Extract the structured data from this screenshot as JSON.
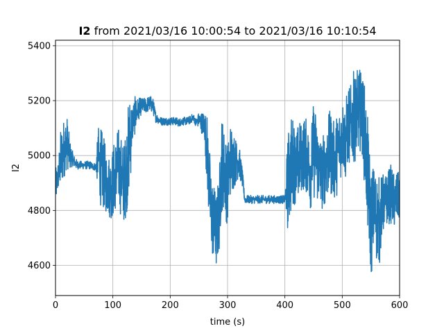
{
  "chart_data": {
    "type": "line",
    "title_bold": "I2",
    "title_rest": " from 2021/03/16 10:00:54 to 2021/03/16 10:10:54",
    "xlabel": "time (s)",
    "ylabel": "I2",
    "xlim": [
      0,
      600
    ],
    "ylim": [
      4490,
      5420
    ],
    "x_ticks": [
      0,
      100,
      200,
      300,
      400,
      500,
      600
    ],
    "y_ticks": [
      4600,
      4800,
      5000,
      5200,
      5400
    ],
    "grid": true,
    "line_color": "#1f77b4",
    "series": [
      {
        "x": [
          0,
          5,
          10,
          15,
          20,
          25,
          30,
          35,
          40,
          45,
          50,
          55,
          60,
          65,
          70,
          75,
          80,
          85,
          90,
          95,
          100,
          105,
          110,
          115,
          120,
          125,
          130,
          135,
          140,
          145,
          150,
          155,
          160,
          165,
          170,
          175,
          180,
          185,
          190,
          195,
          200,
          205,
          210,
          215,
          220,
          225,
          230,
          235,
          240,
          245,
          250,
          255,
          260,
          265,
          270,
          275,
          280,
          285,
          290,
          295,
          300,
          305,
          310,
          315,
          320,
          325,
          330,
          335,
          340,
          345,
          350,
          355,
          360,
          365,
          370,
          375,
          380,
          385,
          390,
          395,
          400,
          405,
          410,
          415,
          420,
          425,
          430,
          435,
          440,
          445,
          450,
          455,
          460,
          465,
          470,
          475,
          480,
          485,
          490,
          495,
          500,
          505,
          510,
          515,
          520,
          525,
          530,
          535,
          540,
          545,
          550,
          555,
          560,
          565,
          570,
          575,
          580,
          585,
          590,
          595,
          600
        ],
        "center": [
          4880,
          4930,
          4990,
          5030,
          5050,
          5000,
          4990,
          4970,
          4965,
          4965,
          4965,
          4965,
          4965,
          4960,
          4960,
          4990,
          4950,
          4930,
          4900,
          4890,
          4900,
          4940,
          4960,
          4920,
          4900,
          4980,
          5060,
          5130,
          5150,
          5170,
          5180,
          5180,
          5185,
          5190,
          5180,
          5140,
          5130,
          5125,
          5125,
          5125,
          5125,
          5125,
          5125,
          5120,
          5125,
          5125,
          5125,
          5130,
          5140,
          5120,
          5130,
          5120,
          5110,
          5000,
          4820,
          4760,
          4720,
          4780,
          4980,
          4940,
          4890,
          4990,
          4990,
          4980,
          4980,
          4930,
          4840,
          4840,
          4840,
          4840,
          4840,
          4840,
          4840,
          4840,
          4840,
          4840,
          4840,
          4840,
          4840,
          4840,
          4840,
          4900,
          4960,
          4990,
          4950,
          4980,
          5000,
          5010,
          4980,
          4950,
          5020,
          5000,
          4950,
          4930,
          4970,
          4990,
          5010,
          4980,
          5000,
          5040,
          5080,
          5050,
          5100,
          5120,
          5140,
          5150,
          5170,
          5150,
          5050,
          4900,
          4750,
          4800,
          4780,
          4760,
          4820,
          4830,
          4850,
          4860,
          4830,
          4840,
          4850
        ],
        "spread": [
          70,
          60,
          130,
          110,
          100,
          60,
          25,
          20,
          15,
          15,
          15,
          15,
          15,
          15,
          15,
          120,
          150,
          130,
          120,
          120,
          140,
          140,
          150,
          150,
          150,
          180,
          180,
          70,
          70,
          40,
          30,
          30,
          30,
          30,
          30,
          20,
          15,
          15,
          15,
          15,
          15,
          15,
          15,
          15,
          15,
          15,
          15,
          15,
          15,
          15,
          30,
          40,
          60,
          150,
          170,
          150,
          150,
          150,
          180,
          160,
          150,
          140,
          120,
          80,
          60,
          40,
          15,
          15,
          15,
          15,
          15,
          15,
          15,
          15,
          15,
          15,
          15,
          15,
          15,
          15,
          15,
          180,
          190,
          160,
          150,
          150,
          130,
          140,
          140,
          150,
          180,
          170,
          150,
          130,
          150,
          160,
          160,
          150,
          150,
          150,
          140,
          150,
          150,
          140,
          170,
          160,
          150,
          150,
          200,
          220,
          200,
          180,
          170,
          160,
          120,
          100,
          100,
          110,
          110,
          100,
          90
        ]
      }
    ]
  }
}
